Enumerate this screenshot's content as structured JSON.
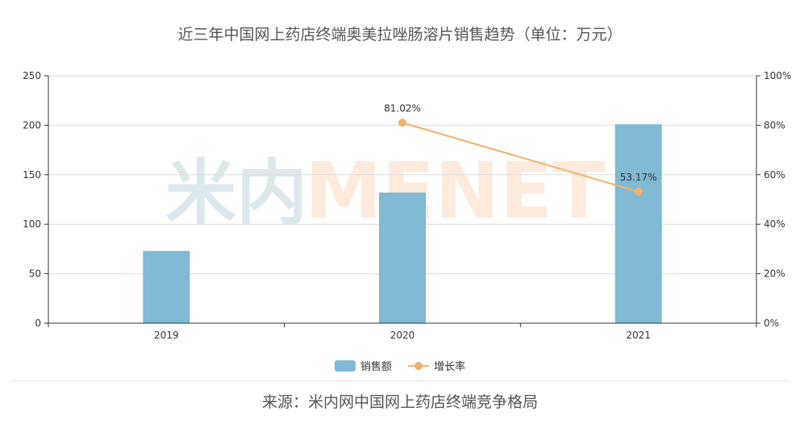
{
  "title": "近三年中国网上药店终端奥美拉唑肠溶片销售趋势（单位：万元）",
  "watermark": {
    "left": "米内",
    "right": "MENET"
  },
  "source": "来源：米内网中国网上药店终端竞争格局",
  "colors": {
    "bar": "#7fb9d4",
    "line": "#f2b16a",
    "axis": "#333333",
    "grid": "#dcdcdc",
    "watermark_left": "#dde8ed",
    "watermark_right": "#fcebdd"
  },
  "chart_data": {
    "type": "bar",
    "categories": [
      "2019",
      "2020",
      "2021"
    ],
    "series": [
      {
        "name": "销售额",
        "type": "bar",
        "axis": "left",
        "values": [
          73,
          132,
          201
        ]
      },
      {
        "name": "增长率",
        "type": "line",
        "axis": "right",
        "values": [
          null,
          81.02,
          53.17
        ],
        "labels": [
          "",
          "81.02%",
          "53.17%"
        ]
      }
    ],
    "y_left": {
      "min": 0,
      "max": 250,
      "ticks": [
        "0",
        "50",
        "100",
        "150",
        "200",
        "250"
      ]
    },
    "y_right": {
      "min": 0,
      "max": 100,
      "ticks": [
        "0%",
        "20%",
        "40%",
        "60%",
        "80%",
        "100%"
      ]
    },
    "grid": true,
    "legend": "bottom-center"
  }
}
